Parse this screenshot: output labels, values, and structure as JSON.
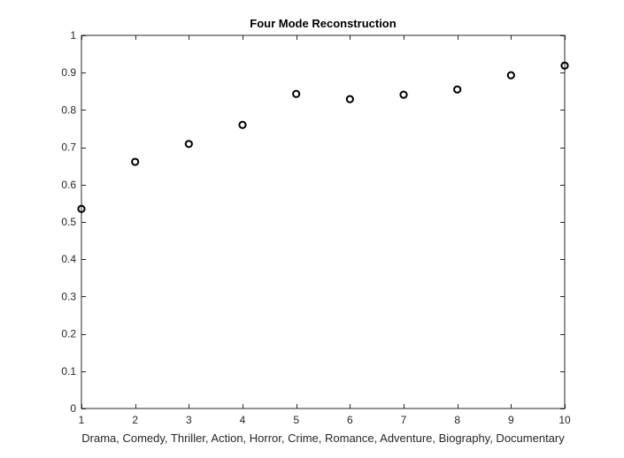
{
  "chart_data": {
    "type": "scatter",
    "title": "Four Mode Reconstruction",
    "xlabel": "Drama, Comedy, Thriller, Action, Horror, Crime, Romance, Adventure, Biography, Documentary",
    "ylabel": "",
    "xlim": [
      1,
      10
    ],
    "ylim": [
      0,
      1
    ],
    "xticks": [
      "1",
      "2",
      "3",
      "4",
      "5",
      "6",
      "7",
      "8",
      "9",
      "10"
    ],
    "yticks": [
      "0",
      "0.1",
      "0.2",
      "0.3",
      "0.4",
      "0.5",
      "0.6",
      "0.7",
      "0.8",
      "0.9",
      "1"
    ],
    "grid": false,
    "marker": "circle-open",
    "marker_color": "#000000",
    "axis_color": "#262626",
    "x": [
      1,
      2,
      3,
      4,
      5,
      6,
      7,
      8,
      9,
      10
    ],
    "y": [
      0.535,
      0.661,
      0.709,
      0.76,
      0.843,
      0.829,
      0.841,
      0.855,
      0.893,
      0.919
    ]
  }
}
